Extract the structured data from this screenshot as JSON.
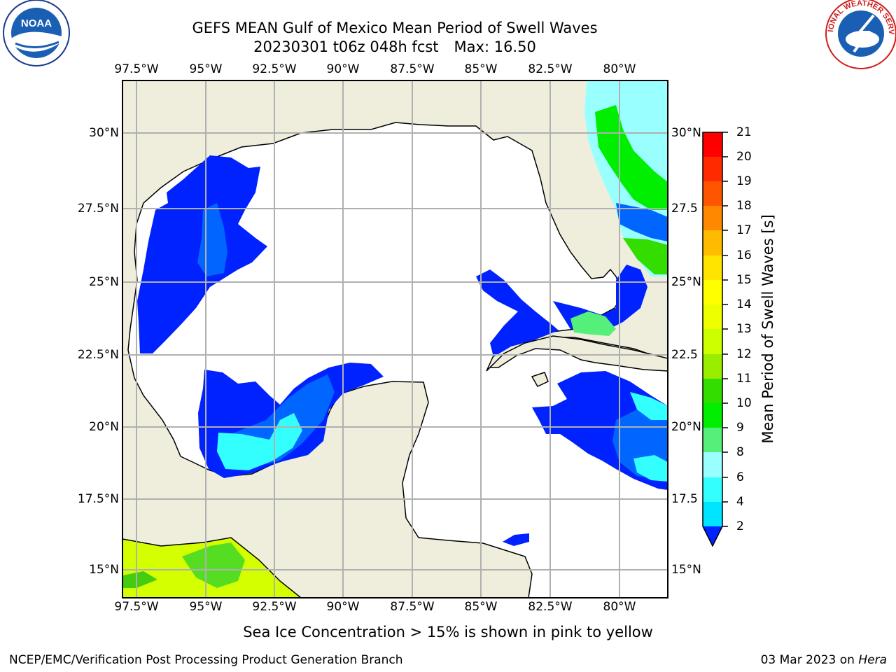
{
  "title_line1": "GEFS MEAN Gulf of Mexico Mean Period of Swell Waves",
  "title_line2_date": "20230301 t06z 048h fcst",
  "title_line2_max": "Max: 16.50",
  "lon_labels": [
    "97.5°W",
    "95°W",
    "92.5°W",
    "90°W",
    "87.5°W",
    "85°W",
    "82.5°W",
    "80°W"
  ],
  "lat_labels_left": [
    "30°N",
    "27.5°N",
    "25°N",
    "22.5°N",
    "20°N",
    "17.5°N",
    "15°N"
  ],
  "lat_labels_right": [
    "30°N",
    "27.5",
    "25°N",
    "22.5",
    "20°N",
    "17.5",
    "15°N"
  ],
  "colorbar": {
    "label": "Mean Period of Swell Waves [s]",
    "ticks": [
      "2",
      "4",
      "6",
      "8",
      "9",
      "10",
      "11",
      "12",
      "13",
      "14",
      "15",
      "16",
      "17",
      "18",
      "19",
      "20",
      "21"
    ],
    "colors": [
      "#0066ff",
      "#00e5ff",
      "#33ffff",
      "#99ffff",
      "#55f07a",
      "#00ee00",
      "#33dd00",
      "#99ee00",
      "#ccff00",
      "#eeff00",
      "#ffff00",
      "#ffe400",
      "#ffbb00",
      "#ff8800",
      "#ff5500",
      "#ff2a00",
      "#ff0000"
    ],
    "under_color": "#0022ff"
  },
  "map_colors": {
    "land": "#efeedd",
    "ocean": "#ffffff",
    "grid": "#b0b0b0"
  },
  "note": "Sea Ice Concentration > 15% is shown in pink to yellow",
  "footer_left": "NCEP/EMC/Verification Post Processing Product Generation Branch",
  "footer_date": "03 Mar 2023 on",
  "footer_host": "Hera",
  "logos": {
    "left": "NOAA",
    "right": "NATIONAL WEATHER SERVICE"
  }
}
